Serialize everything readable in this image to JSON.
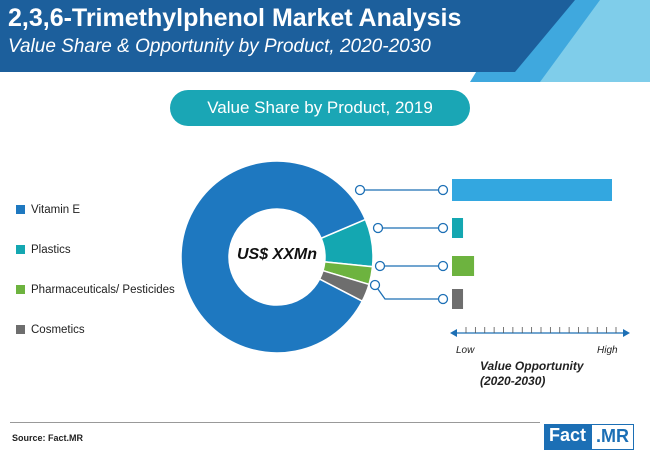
{
  "header": {
    "title": "2,3,6-Trimethylphenol Market Analysis",
    "subtitle": "Value Share & Opportunity by Product, 2020-2030"
  },
  "pill_title": "Value Share by Product, 2019",
  "center_label": "US$ XXMn",
  "axis": {
    "low": "Low",
    "high": "High",
    "title_line1": "Value Opportunity",
    "title_line2": "(2020-2030)"
  },
  "source": "Source: Fact.MR",
  "logo": {
    "part1": "Fact",
    "part2": ".MR"
  },
  "colors": {
    "header_dark": "#1c5f9c",
    "header_light": "#4fb4e0",
    "pill": "#1aa6b5",
    "connector": "#1c6fb5",
    "axis": "#1c6fb5"
  },
  "chart_data": {
    "type": "pie",
    "subtype": "donut",
    "categories": [
      "Vitamin E",
      "Plastics",
      "Pharmaceuticals/ Pesticides",
      "Cosmetics"
    ],
    "values": [
      86,
      8,
      3,
      3
    ],
    "colors": [
      "#1e78c0",
      "#14a7b1",
      "#6db33f",
      "#6e6e6e"
    ],
    "opportunity_scale": "Low to High",
    "opportunity_values": [
      0.87,
      0.06,
      0.12,
      0.06
    ],
    "opportunity_colors": [
      "#33a7e0",
      "#14a7b1",
      "#6db33f",
      "#6e6e6e"
    ]
  }
}
